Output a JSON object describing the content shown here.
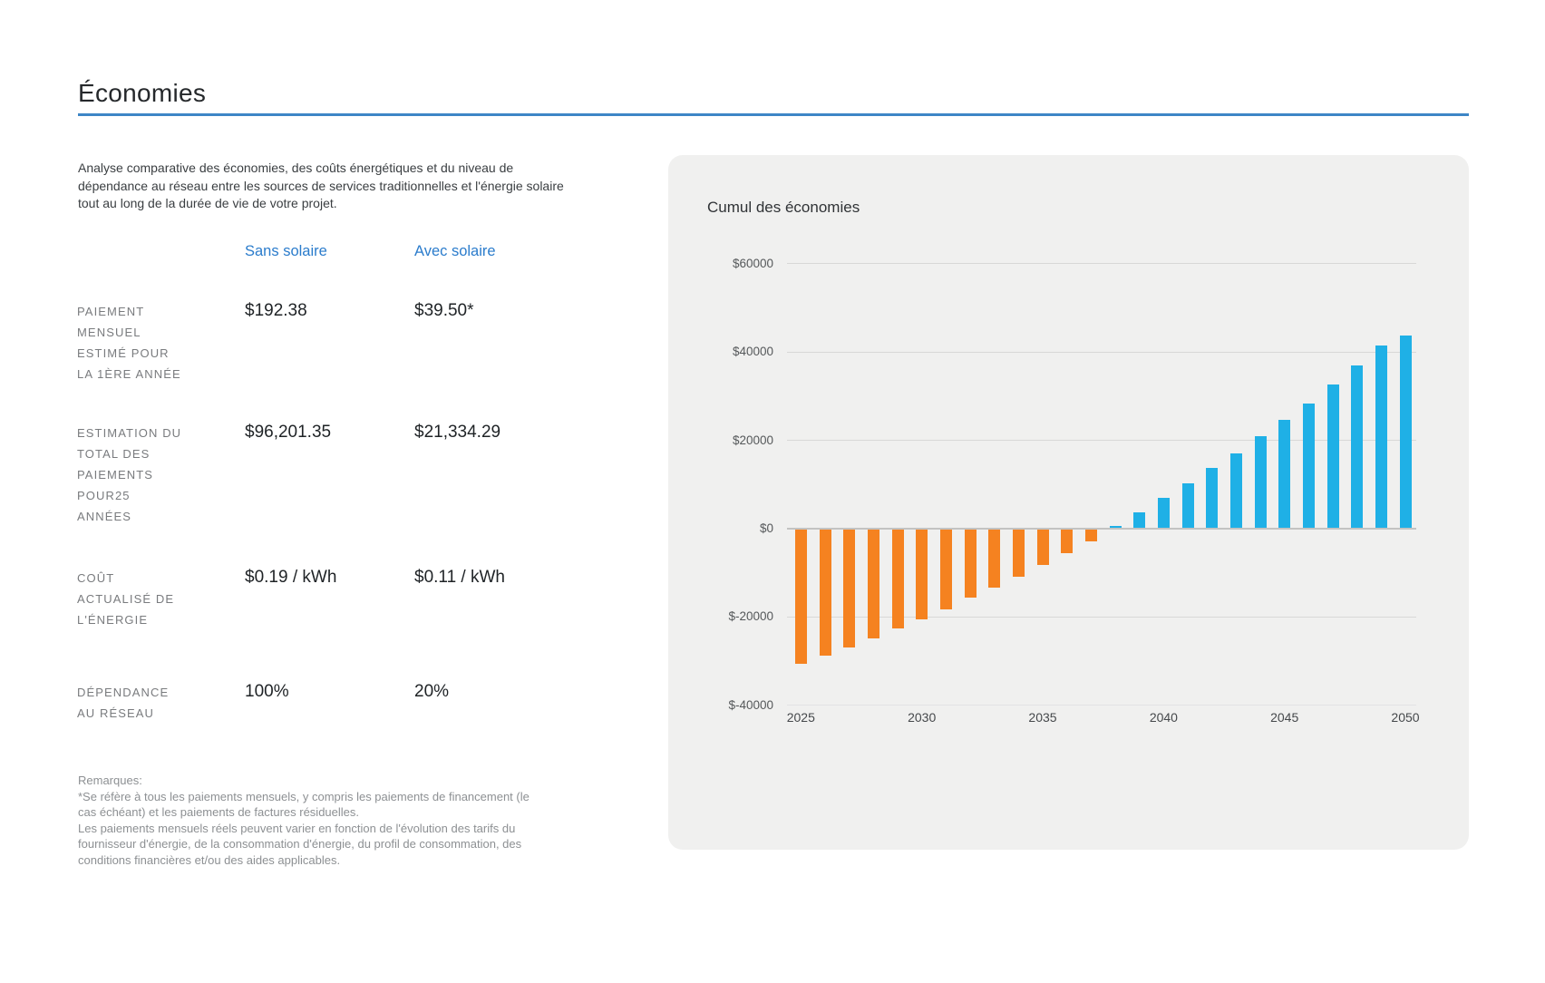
{
  "header": {
    "title": "Économies"
  },
  "intro": {
    "text": "Analyse comparative des économies, des coûts énergétiques et du niveau de\ndépendance au réseau entre les sources de services traditionnelles et l'énergie solaire\ntout au long de la durée de vie de votre projet."
  },
  "comparison": {
    "columns": [
      {
        "label": "Sans solaire"
      },
      {
        "label": "Avec solaire"
      }
    ],
    "rows": [
      {
        "label": "PAIEMENT\nMENSUEL\nESTIMÉ POUR\nLA 1ÈRE ANNÉE",
        "without_solar": "$192.38",
        "with_solar": "$39.50*"
      },
      {
        "label": "ESTIMATION DU\nTOTAL DES\nPAIEMENTS\nPOUR25\nANNÉES",
        "without_solar": "$96,201.35",
        "with_solar": "$21,334.29"
      },
      {
        "label": "COÛT\nACTUALISÉ DE\nL'ÉNERGIE",
        "without_solar": "$0.19 / kWh",
        "with_solar": "$0.11 / kWh"
      },
      {
        "label": "DÉPENDANCE\nAU RÉSEAU",
        "without_solar": "100%",
        "with_solar": "20%"
      }
    ]
  },
  "notes": {
    "text": "Remarques:\n*Se réfère à tous les paiements mensuels, y compris les paiements de financement (le\ncas échéant) et les paiements de factures résiduelles.\nLes paiements mensuels réels peuvent varier en fonction de l'évolution des tarifs du\nfournisseur d'énergie, de la consommation d'énergie, du profil de consommation, des\nconditions financières et/ou des aides applicables."
  },
  "chart_data": {
    "type": "bar",
    "title": "Cumul des économies",
    "x": [
      2025,
      2026,
      2027,
      2028,
      2029,
      2030,
      2031,
      2032,
      2033,
      2034,
      2035,
      2036,
      2037,
      2038,
      2039,
      2040,
      2041,
      2042,
      2043,
      2044,
      2045,
      2046,
      2047,
      2048,
      2049,
      2050
    ],
    "values": [
      -30400,
      -28500,
      -26700,
      -24700,
      -22400,
      -20300,
      -18000,
      -15400,
      -13100,
      -10700,
      -8000,
      -5400,
      -2700,
      500,
      3400,
      6800,
      10100,
      13500,
      16900,
      20700,
      24400,
      28100,
      32400,
      36700,
      41200,
      43600
    ],
    "y_tick_values": [
      60000,
      40000,
      20000,
      0,
      -20000,
      -40000
    ],
    "y_tick_labels": [
      "$60000",
      "$40000",
      "$20000",
      "$0",
      "$-20000",
      "$-40000"
    ],
    "x_tick_labels": [
      "2025",
      "2030",
      "2035",
      "2040",
      "2045",
      "2050"
    ],
    "ylim": [
      -40000,
      60000
    ],
    "grid": true,
    "legend_position": "none",
    "negative_color": "#f58220",
    "positive_color": "#1fb0e6"
  },
  "colors": {
    "accent_text_blue": "#2b7ccc",
    "title_rule_blue": "#3d86c6",
    "bar_orange": "#f58220",
    "bar_blue": "#1fb0e6",
    "panel_background": "#f0f0ef"
  }
}
